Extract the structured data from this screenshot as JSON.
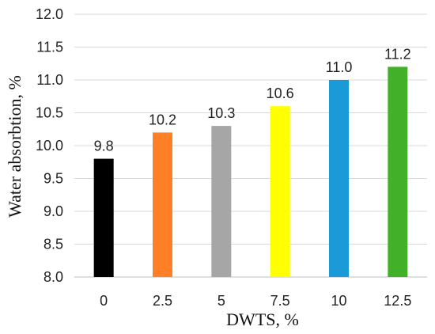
{
  "chart_data": {
    "type": "bar",
    "categories": [
      "0",
      "2.5",
      "5",
      "7.5",
      "10",
      "12.5"
    ],
    "values": [
      9.8,
      10.2,
      10.3,
      10.6,
      11.0,
      11.2
    ],
    "value_labels": [
      "9.8",
      "10.2",
      "10.3",
      "10.6",
      "11.0",
      "11.2"
    ],
    "colors": [
      "#000000",
      "#ff7f27",
      "#a6a6a6",
      "#ffff00",
      "#1a9ad6",
      "#43b02a"
    ],
    "xlabel": "DWTS, %",
    "ylabel": "Water absorbtion, %",
    "ylim": [
      8.0,
      12.0
    ],
    "yticks": [
      8.0,
      8.5,
      9.0,
      9.5,
      10.0,
      10.5,
      11.0,
      11.5,
      12.0
    ],
    "ytick_labels": [
      "8.0",
      "8.5",
      "9.0",
      "9.5",
      "10.0",
      "10.5",
      "11.0",
      "11.5",
      "12.0"
    ],
    "grid": true,
    "legend": "none"
  }
}
